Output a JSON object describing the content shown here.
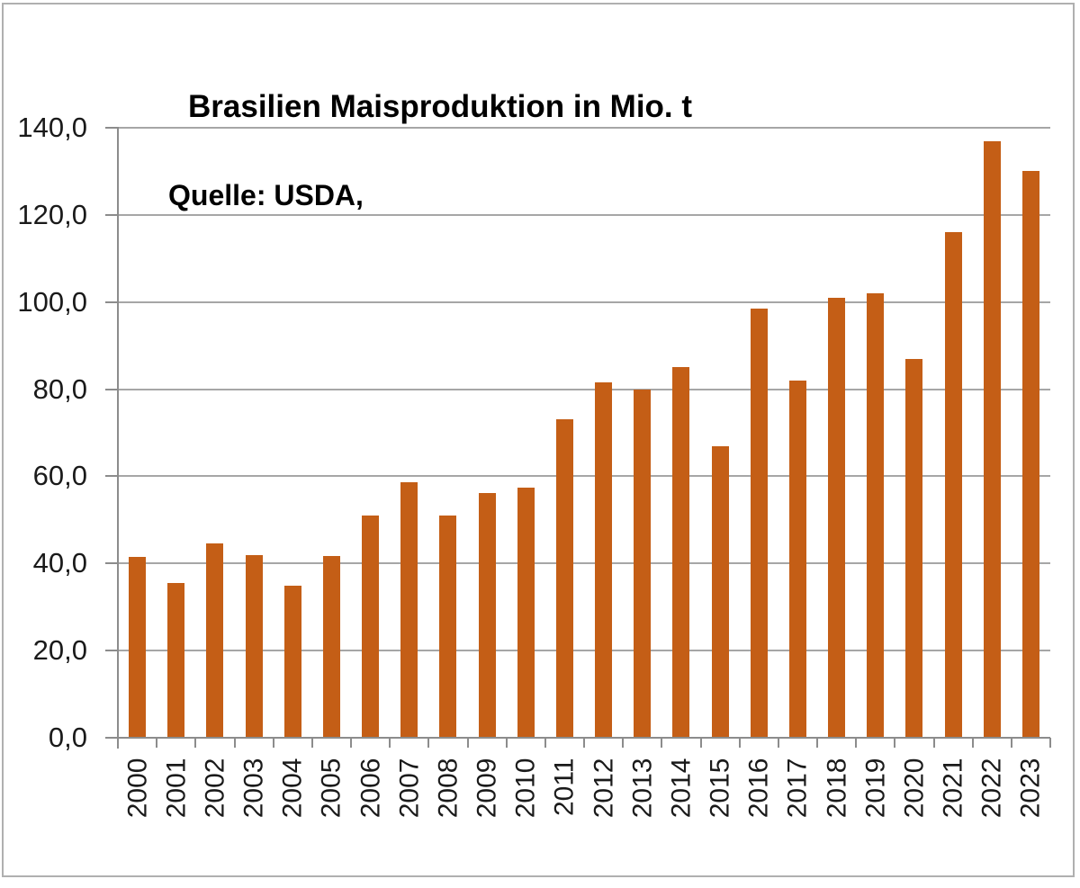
{
  "chart_data": {
    "type": "bar",
    "title": "Brasilien Maisproduktion in Mio. t",
    "source_note": "Quelle: USDA,",
    "xlabel": "",
    "ylabel": "",
    "categories": [
      "2000",
      "2001",
      "2002",
      "2003",
      "2004",
      "2005",
      "2006",
      "2007",
      "2008",
      "2009",
      "2010",
      "2011",
      "2012",
      "2013",
      "2014",
      "2015",
      "2016",
      "2017",
      "2018",
      "2019",
      "2020",
      "2021",
      "2022",
      "2023"
    ],
    "values": [
      41.5,
      35.5,
      44.5,
      42.0,
      35.0,
      41.7,
      51.0,
      58.6,
      51.0,
      56.1,
      57.4,
      73.0,
      81.5,
      80.0,
      85.0,
      67.0,
      98.5,
      82.0,
      101.0,
      102.0,
      87.0,
      116.0,
      137.0,
      130.0
    ],
    "ylim": [
      0,
      140
    ],
    "ytick_step": 20,
    "ytick_labels": [
      "0,0",
      "20,0",
      "40,0",
      "60,0",
      "80,0",
      "100,0",
      "120,0",
      "140,0"
    ],
    "grid": true,
    "legend": "none",
    "colors": {
      "bar": "#C45E16",
      "bar_edge": "#A84E10",
      "gridline": "#A6A6A6",
      "axis": "#8C8C8C",
      "label_text": "#1a1a1a",
      "title_text": "#000000",
      "frame_border": "#B0B0B0"
    }
  }
}
